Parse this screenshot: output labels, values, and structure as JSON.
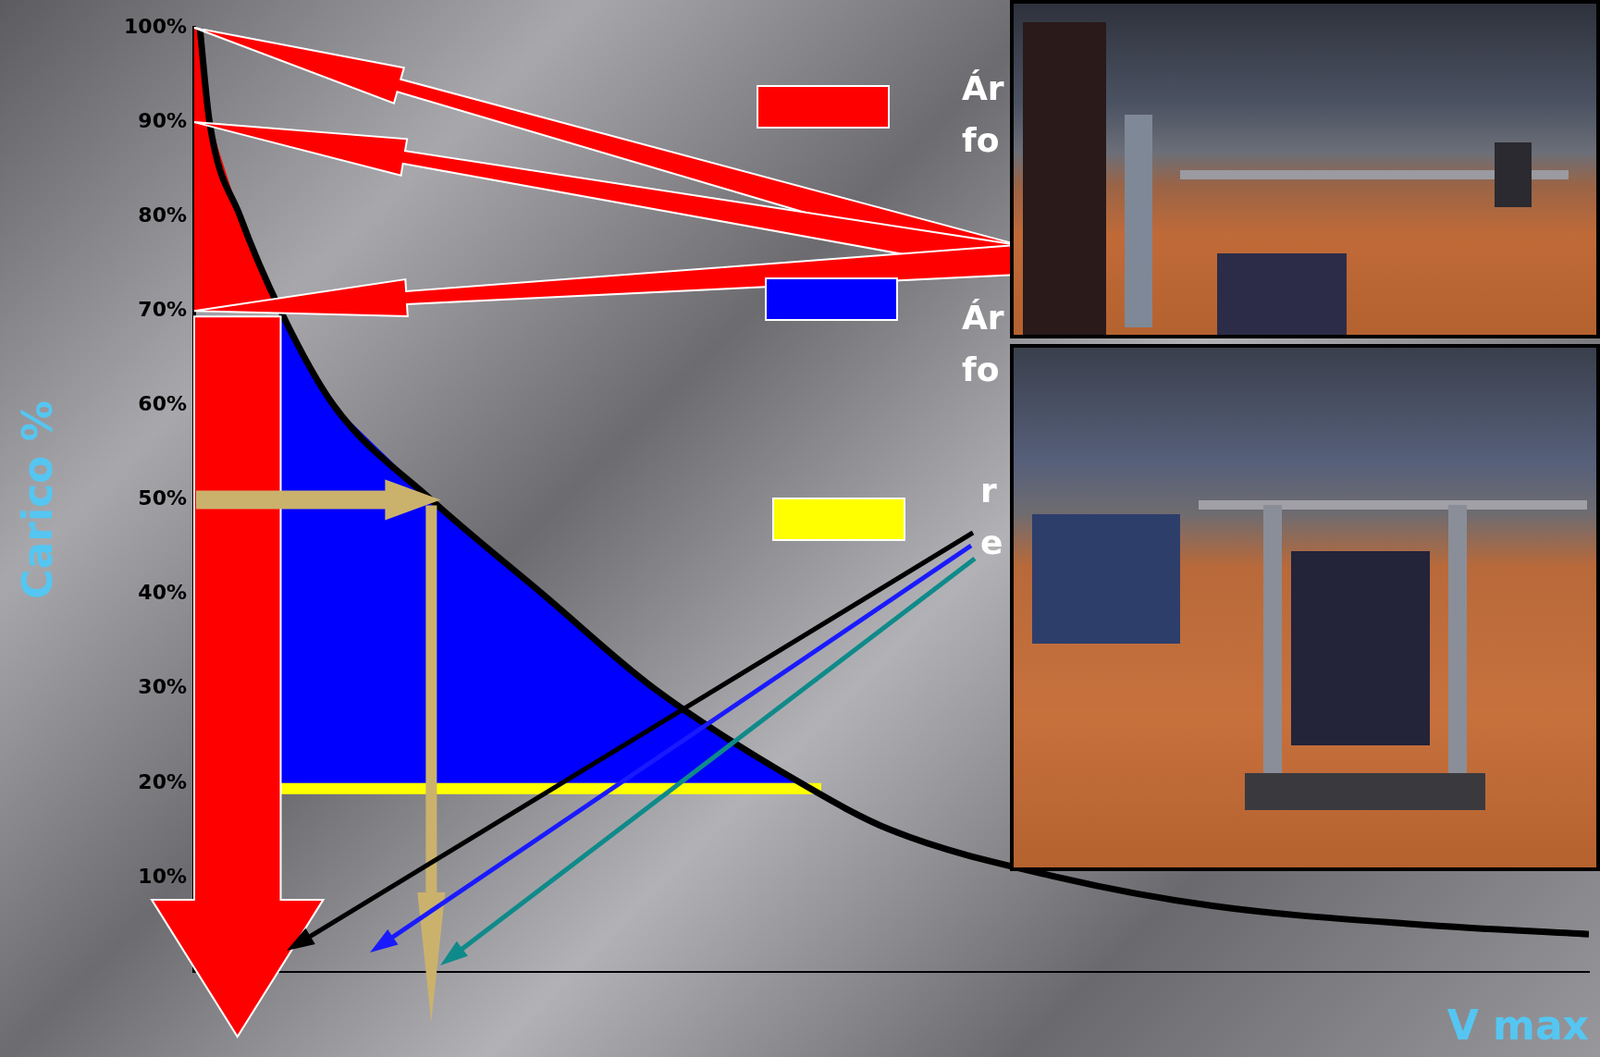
{
  "chart_data": {
    "type": "line",
    "x": [
      0.4,
      1.1,
      3.3,
      6.2,
      10,
      17,
      25,
      33,
      43.5,
      50,
      62,
      73,
      88,
      100
    ],
    "values": [
      100,
      90,
      80,
      70,
      60,
      50,
      40,
      30,
      20,
      15,
      10,
      7,
      5,
      4
    ],
    "color": "#000000",
    "xlim": [
      0,
      100
    ],
    "ylim": [
      0,
      100
    ],
    "yticks": [
      {
        "value": 10,
        "label": "10%"
      },
      {
        "value": 20,
        "label": "20%"
      },
      {
        "value": 30,
        "label": "30%"
      },
      {
        "value": 40,
        "label": "40%"
      },
      {
        "value": 50,
        "label": "50%"
      },
      {
        "value": 60,
        "label": "60%"
      },
      {
        "value": 70,
        "label": "70%"
      },
      {
        "value": 80,
        "label": "80%"
      },
      {
        "value": 90,
        "label": "90%"
      },
      {
        "value": 100,
        "label": "100%"
      }
    ],
    "y_label": "Carico %",
    "x_label": "V max",
    "grid": false,
    "tick_labels": "y",
    "zones": [
      {
        "from": 70,
        "to": 100,
        "color": "#ff0000"
      },
      {
        "from": 20,
        "to": 70,
        "color": "#0000ff"
      },
      {
        "at": 20,
        "color": "#ffff00"
      }
    ],
    "arrow_targets": [
      100,
      90,
      70
    ],
    "marked_load": 50,
    "annotations": [
      {
        "color": "#ff0000",
        "lines": [
          "Ár",
          "fo"
        ]
      },
      {
        "color": "#0000ff",
        "lines": [
          "Ár",
          "fo"
        ]
      },
      {
        "color": "#ffff00",
        "lines": [
          "r",
          "e"
        ]
      }
    ]
  }
}
